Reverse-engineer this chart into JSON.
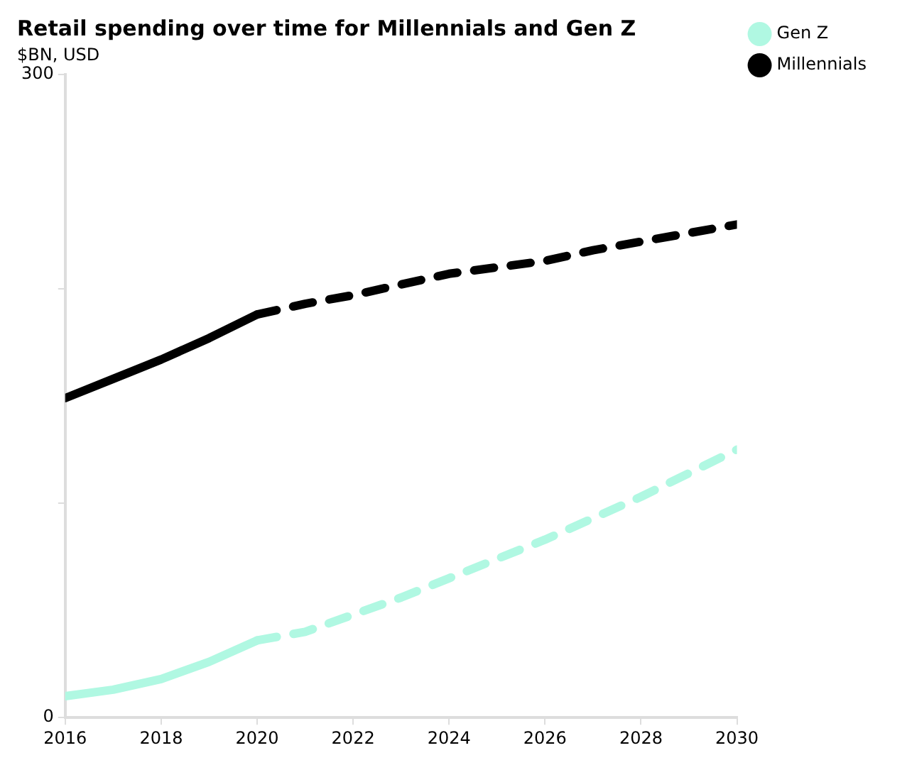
{
  "chart_data": {
    "type": "line",
    "title": "Retail spending over time for Millennials and Gen Z",
    "subtitle": "$BN, USD",
    "series": [
      {
        "name": "Gen Z",
        "color": "#b0f8e2",
        "line_style": "solid",
        "x": [
          2016,
          2017,
          2018,
          2019,
          2020
        ],
        "values": [
          10,
          13,
          18,
          26,
          36
        ]
      },
      {
        "name": "Millennials",
        "color": "#000000",
        "line_style": "solid",
        "x": [
          2016,
          2017,
          2018,
          2019,
          2020
        ],
        "values": [
          149,
          158,
          167,
          177,
          188
        ]
      },
      {
        "color": "#b0f8e2",
        "line_style": "dashed",
        "x": [
          2020,
          2021,
          2022,
          2023,
          2024,
          2025,
          2026,
          2027,
          2028,
          2029,
          2030
        ],
        "values": [
          36,
          40,
          48,
          56,
          65,
          74,
          83,
          93,
          103,
          114,
          125
        ]
      },
      {
        "color": "#000000",
        "line_style": "dashed",
        "x": [
          2020,
          2021,
          2022,
          2023,
          2024,
          2025,
          2026,
          2027,
          2028,
          2029,
          2030
        ],
        "values": [
          188,
          193,
          197,
          202,
          207,
          210,
          213,
          218,
          222,
          226,
          230
        ]
      }
    ],
    "xlim": [
      2016,
      2030
    ],
    "xticks": [
      2016,
      2018,
      2020,
      2022,
      2024,
      2026,
      2028,
      2030
    ],
    "ylim": [
      0,
      300
    ],
    "yticks": [
      0,
      {
        "value": 100,
        "label": null
      },
      {
        "value": 200,
        "label": null
      },
      300
    ],
    "grid": false,
    "legend": "top right",
    "marker": "none"
  }
}
